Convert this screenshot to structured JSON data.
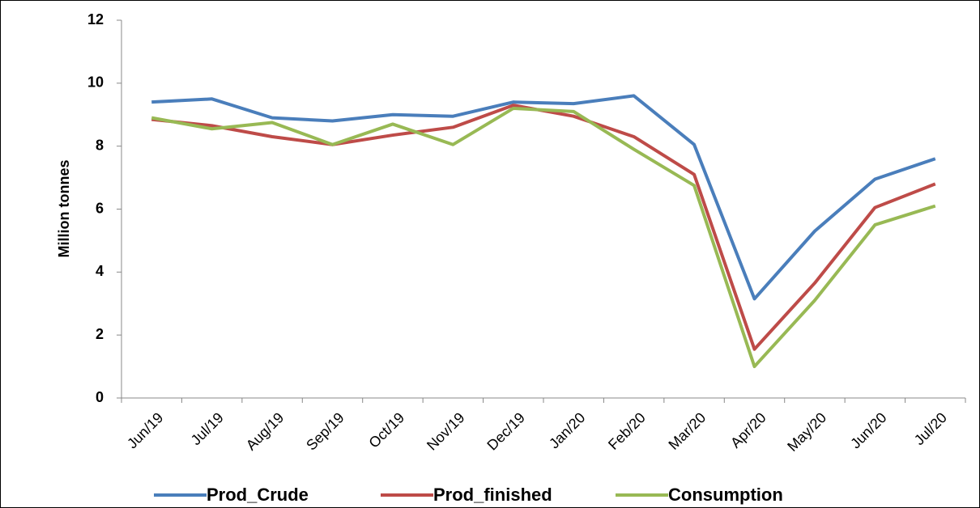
{
  "chart_data": {
    "type": "line",
    "y_label": "Million tonnes",
    "categories": [
      "Jun/19",
      "Jul/19",
      "Aug/19",
      "Sep/19",
      "Oct/19",
      "Nov/19",
      "Dec/19",
      "Jan/20",
      "Feb/20",
      "Mar/20",
      "Apr/20",
      "May/20",
      "Jun/20",
      "Jul/20"
    ],
    "series": [
      {
        "name": "Prod_Crude",
        "color": "#4a7ebb",
        "values": [
          9.4,
          9.5,
          8.9,
          8.8,
          9.0,
          8.95,
          9.4,
          9.35,
          9.6,
          8.05,
          3.15,
          5.3,
          6.95,
          7.6
        ]
      },
      {
        "name": "Prod_finished",
        "color": "#be4b48",
        "values": [
          8.85,
          8.65,
          8.3,
          8.05,
          8.35,
          8.6,
          9.3,
          8.95,
          8.3,
          7.1,
          1.55,
          3.65,
          6.05,
          6.8
        ]
      },
      {
        "name": "Consumption",
        "color": "#98b954",
        "values": [
          8.9,
          8.55,
          8.75,
          8.05,
          8.7,
          8.05,
          9.2,
          9.1,
          7.9,
          6.75,
          1.0,
          3.1,
          5.5,
          6.1
        ]
      }
    ],
    "ylim": [
      0,
      12
    ],
    "yticks": [
      0,
      2,
      4,
      6,
      8,
      10,
      12
    ],
    "legend": "bottom"
  }
}
